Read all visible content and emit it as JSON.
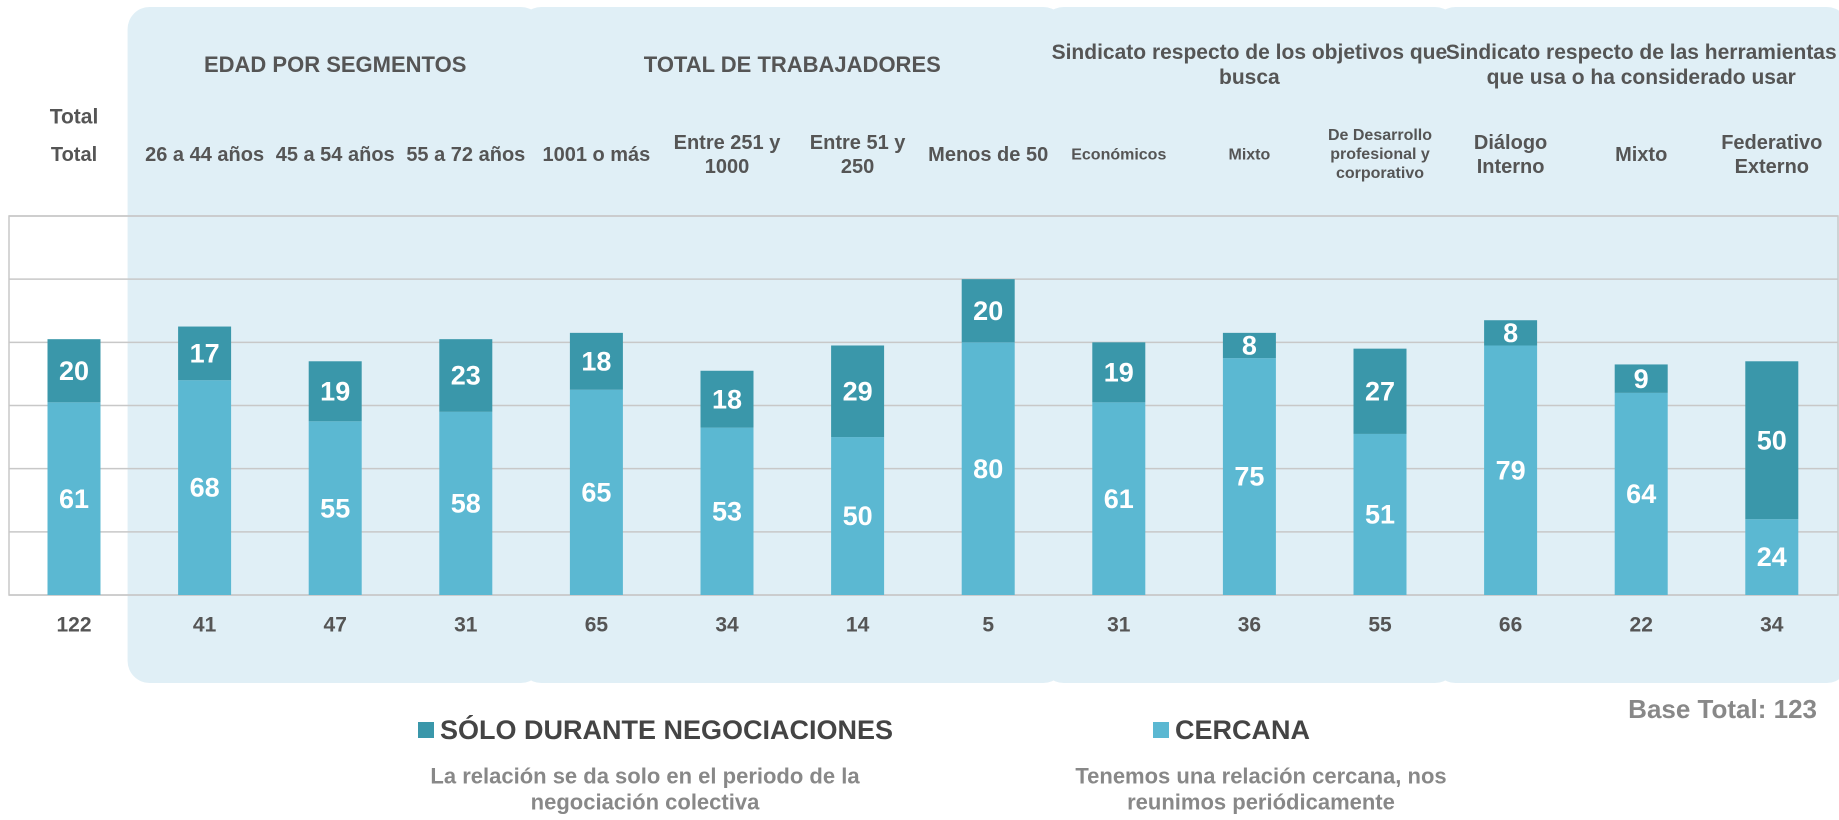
{
  "chart_data": {
    "type": "stacked_bar",
    "total_label": "Total",
    "groups": [
      {
        "title": "EDAD POR SEGMENTOS",
        "start": 1,
        "end": 3
      },
      {
        "title": "TOTAL DE TRABAJADORES",
        "start": 4,
        "end": 7
      },
      {
        "title": "Sindicato respecto de los objetivos que busca",
        "start": 8,
        "end": 10
      },
      {
        "title": "Sindicato respecto de las herramientas que usa o ha considerado usar",
        "start": 11,
        "end": 13
      }
    ],
    "categories": [
      "Total",
      "26 a 44 años",
      "45 a 54 años",
      "55 a 72 años",
      "1001 o más",
      "Entre 251 y 1000",
      "Entre 51 y 250",
      "Menos de 50",
      "Económicos",
      "Mixto",
      "De Desarrollo profesional y corporativo",
      "Diálogo Interno",
      "Mixto",
      "Federativo Externo"
    ],
    "series": [
      {
        "name": "CERCANA",
        "color": "#5bb8d2",
        "description": "Tenemos una relación cercana, nos reunimos periódicamente",
        "values": [
          61,
          68,
          55,
          58,
          65,
          53,
          50,
          80,
          61,
          75,
          51,
          79,
          64,
          24
        ]
      },
      {
        "name": "SÓLO DURANTE NEGOCIACIONES",
        "color": "#3a97aa",
        "description": "La relación se da solo en el periodo de la negociación colectiva",
        "values": [
          20,
          17,
          19,
          23,
          18,
          18,
          29,
          20,
          19,
          8,
          27,
          8,
          9,
          50
        ]
      }
    ],
    "bases": [
      122,
      41,
      47,
      31,
      65,
      34,
      14,
      5,
      31,
      36,
      55,
      66,
      22,
      34
    ],
    "base_total": "Base Total: 123",
    "ylim": [
      0,
      120
    ],
    "yticks": [
      0,
      20,
      40,
      60,
      80,
      100,
      120
    ],
    "grid": true
  }
}
